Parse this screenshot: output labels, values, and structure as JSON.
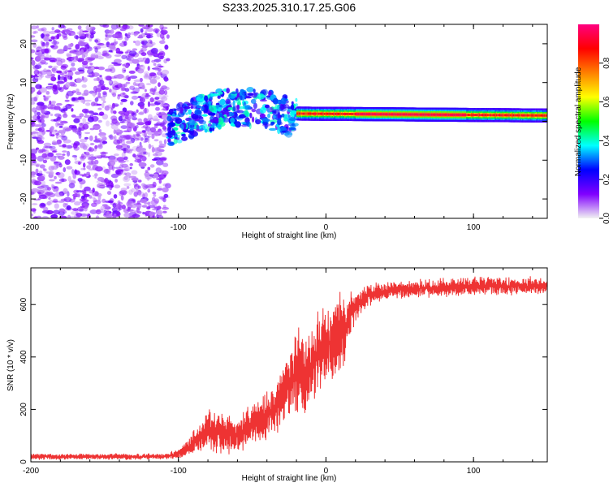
{
  "figure": {
    "title": "S233.2025.310.17.25.G06"
  },
  "chart_data": [
    {
      "type": "heatmap",
      "xlabel": "Height of straight line (km)",
      "ylabel": "Frequency (Hz)",
      "xlim": [
        -200,
        150
      ],
      "ylim": [
        -25,
        25
      ],
      "xticks": [
        -200,
        -100,
        0,
        100
      ],
      "yticks": [
        -20,
        -10,
        0,
        10,
        20
      ],
      "colorbar": {
        "label": "Normalized spectral amplitude",
        "range": [
          0,
          1
        ],
        "ticks": [
          "0.0",
          "0.2",
          "0.4",
          "0.6",
          "0.8"
        ],
        "colors": [
          "#f2f2f2",
          "#8000ff",
          "#0000ff",
          "#00ffff",
          "#00ff00",
          "#ffff00",
          "#ff8000",
          "#ff0000",
          "#ff0080"
        ]
      },
      "regions": [
        {
          "x": [
            -200,
            -107
          ],
          "freq_center": 0,
          "freq_spread": 25,
          "amplitude": 0.15,
          "description": "noise"
        },
        {
          "x": [
            -107,
            -20
          ],
          "freq_center": [
            -2,
            5
          ],
          "freq_spread": 6,
          "amplitude": 0.3
        },
        {
          "x": [
            -20,
            150
          ],
          "freq_center": [
            2,
            1.5
          ],
          "freq_spread": 1,
          "amplitude": 0.95
        }
      ]
    },
    {
      "type": "line",
      "xlabel": "Height of straight line (km)",
      "ylabel": "SNR (10 * v/v)",
      "xlim": [
        -200,
        150
      ],
      "ylim": [
        0,
        740
      ],
      "xticks": [
        -200,
        -100,
        0,
        100
      ],
      "yticks": [
        0,
        200,
        400,
        600
      ],
      "series": [
        {
          "name": "SNR",
          "color": "#ee3333",
          "profile": {
            "x": [
              -200,
              -110,
              -100,
              -90,
              -80,
              -70,
              -60,
              -50,
              -40,
              -30,
              -25,
              -20,
              -15,
              -10,
              -5,
              0,
              5,
              10,
              15,
              20,
              25,
              30,
              40,
              60,
              100,
              150
            ],
            "mean": [
              20,
              20,
              30,
              70,
              120,
              110,
              100,
              140,
              170,
              250,
              300,
              350,
              330,
              360,
              420,
              450,
              470,
              500,
              540,
              590,
              620,
              640,
              650,
              660,
              670,
              670
            ],
            "amp": [
              10,
              10,
              15,
              45,
              70,
              65,
              60,
              70,
              80,
              100,
              110,
              130,
              140,
              130,
              130,
              120,
              130,
              140,
              90,
              50,
              40,
              35,
              30,
              30,
              30,
              30
            ]
          }
        }
      ]
    }
  ]
}
